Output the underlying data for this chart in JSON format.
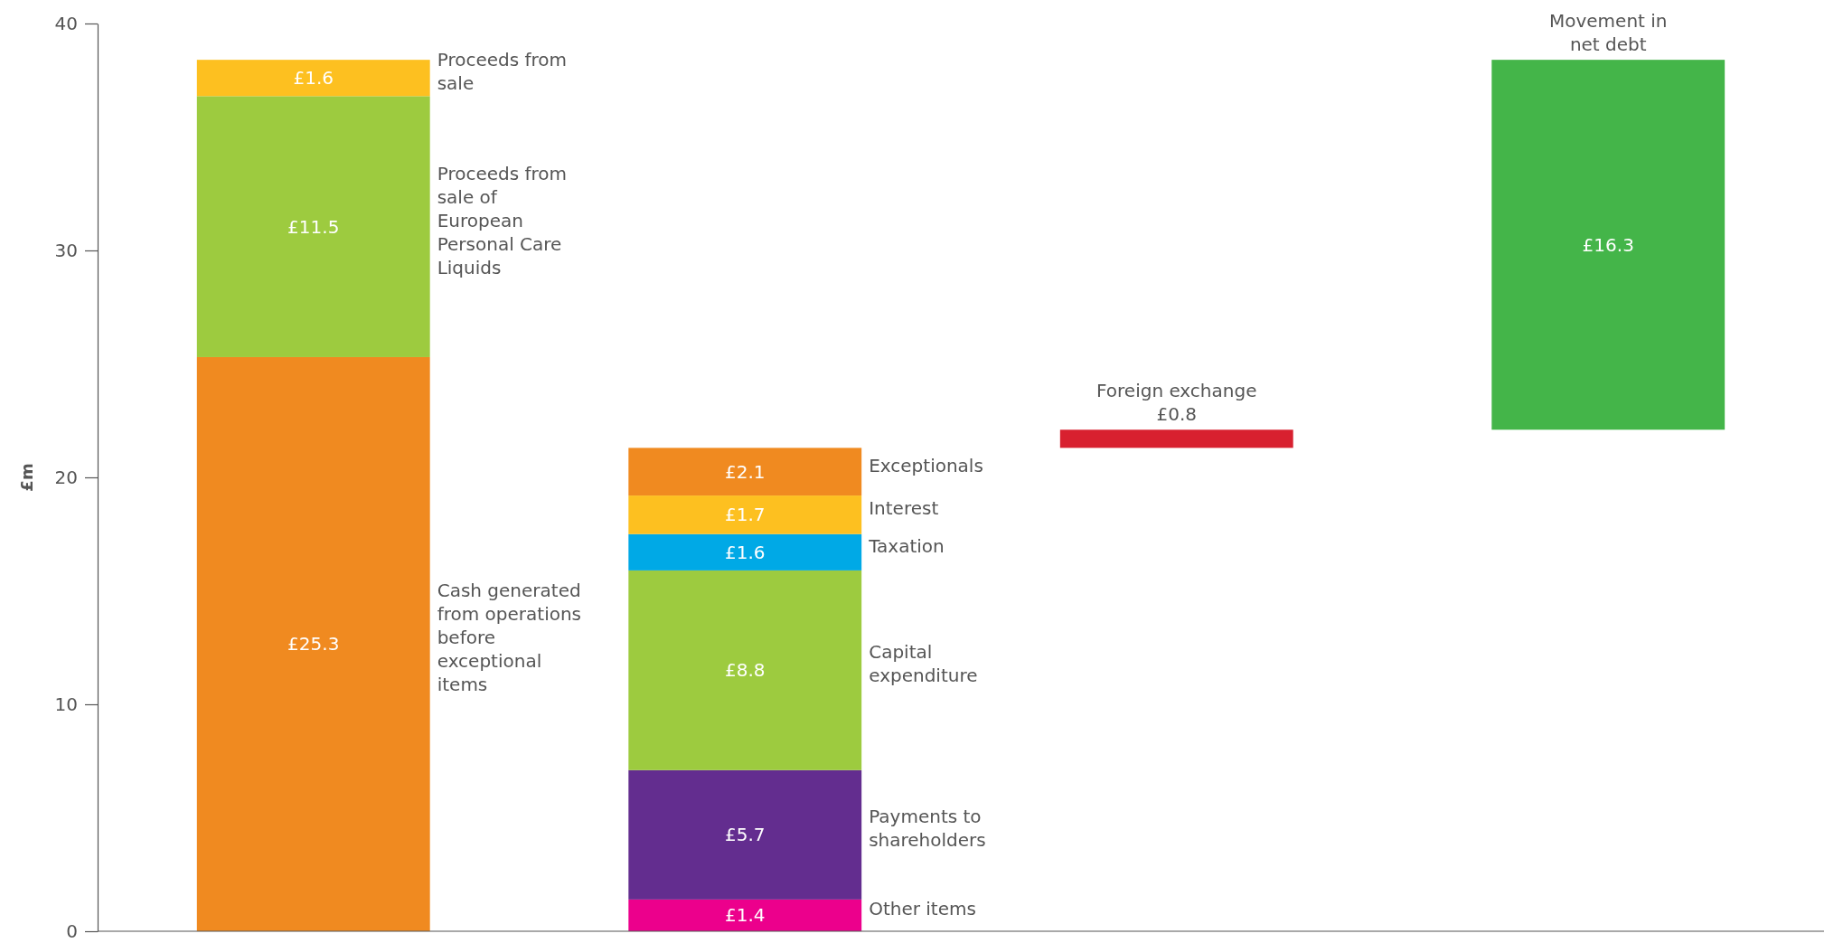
{
  "chart_data": {
    "type": "bar",
    "ylabel": "£m",
    "categories": [
      null,
      null,
      null,
      null
    ],
    "ylim": [
      0,
      40
    ],
    "yticks": [
      0,
      10,
      20,
      30,
      40
    ],
    "grid": false,
    "legend": false,
    "series": [
      {
        "name": "Cash generated from operations before exceptional items",
        "color": "#f08a20",
        "values": [
          25.3,
          null,
          null,
          null
        ],
        "base": [
          0,
          null,
          null,
          null
        ],
        "value_labels": [
          "£25.3",
          null,
          null,
          null
        ]
      },
      {
        "name": "Proceeds from sale of European Personal Care Liquids",
        "color": "#9dcb3f",
        "values": [
          11.5,
          null,
          null,
          null
        ],
        "base": [
          25.3,
          null,
          null,
          null
        ],
        "value_labels": [
          "£11.5",
          null,
          null,
          null
        ]
      },
      {
        "name": "Proceeds from sale",
        "color": "#fdc020",
        "values": [
          1.6,
          null,
          null,
          null
        ],
        "base": [
          36.8,
          null,
          null,
          null
        ],
        "value_labels": [
          "£1.6",
          null,
          null,
          null
        ]
      },
      {
        "name": "Other items",
        "color": "#ec008c",
        "values": [
          null,
          1.4,
          null,
          null
        ],
        "base": [
          null,
          0,
          null,
          null
        ],
        "value_labels": [
          null,
          "£1.4",
          null,
          null
        ]
      },
      {
        "name": "Payments to shareholders",
        "color": "#632d8f",
        "values": [
          null,
          5.7,
          null,
          null
        ],
        "base": [
          null,
          1.4,
          null,
          null
        ],
        "value_labels": [
          null,
          "£5.7",
          null,
          null
        ]
      },
      {
        "name": "Capital expenditure",
        "color": "#9dcb3f",
        "values": [
          null,
          8.8,
          null,
          null
        ],
        "base": [
          null,
          7.1,
          null,
          null
        ],
        "value_labels": [
          null,
          "£8.8",
          null,
          null
        ]
      },
      {
        "name": "Taxation",
        "color": "#00a9e6",
        "values": [
          null,
          1.6,
          null,
          null
        ],
        "base": [
          null,
          15.9,
          null,
          null
        ],
        "value_labels": [
          null,
          "£1.6",
          null,
          null
        ]
      },
      {
        "name": "Interest",
        "color": "#fdc020",
        "values": [
          null,
          1.7,
          null,
          null
        ],
        "base": [
          null,
          17.5,
          null,
          null
        ],
        "value_labels": [
          null,
          "£1.7",
          null,
          null
        ]
      },
      {
        "name": "Exceptionals",
        "color": "#f08a20",
        "values": [
          null,
          2.1,
          null,
          null
        ],
        "base": [
          null,
          19.2,
          null,
          null
        ],
        "value_labels": [
          null,
          "£2.1",
          null,
          null
        ]
      },
      {
        "name": "Foreign exchange",
        "color": "#d8202f",
        "values": [
          null,
          null,
          0.8,
          null
        ],
        "base": [
          null,
          null,
          21.3,
          null
        ],
        "value_labels": [
          null,
          null,
          "£0.8",
          null
        ]
      },
      {
        "name": "Movement in net debt",
        "color": "#44b549",
        "values": [
          null,
          null,
          null,
          16.3
        ],
        "base": [
          null,
          null,
          null,
          22.1
        ],
        "value_labels": [
          null,
          null,
          null,
          "£16.3"
        ]
      }
    ]
  }
}
